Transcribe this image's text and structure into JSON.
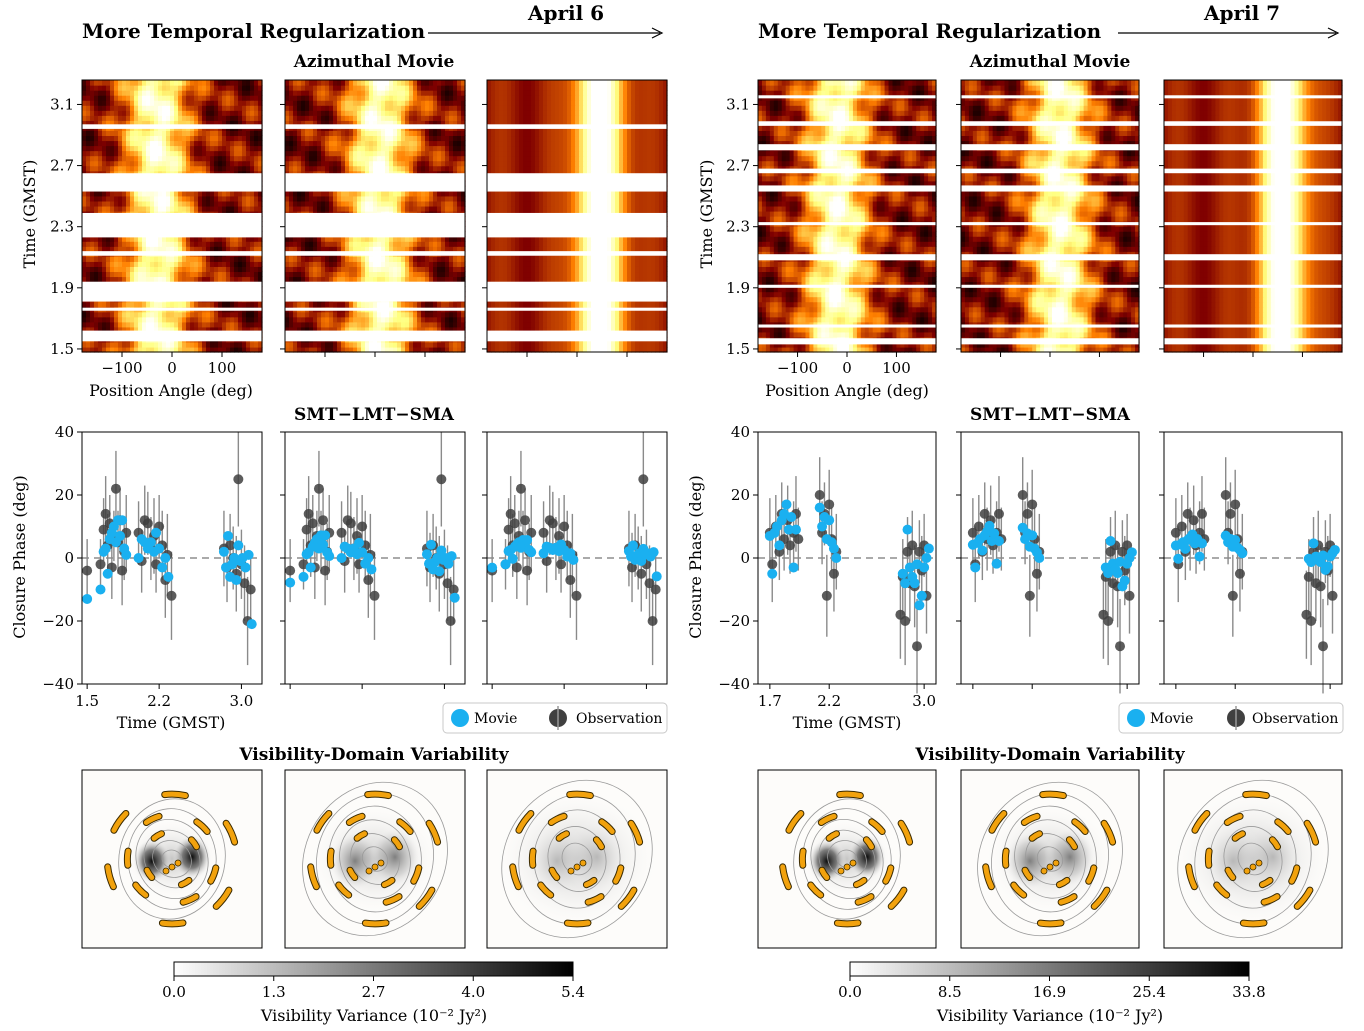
{
  "chart_data": {
    "type": "composite",
    "panels": [
      {
        "day": "April 6",
        "header": "More Temporal Regularization",
        "movie": {
          "title": "Azimuthal Movie",
          "xlabel": "Position Angle (deg)",
          "ylabel": "Time (GMST)",
          "xticks": [
            "−100",
            "0",
            "100"
          ],
          "xtick_values": [
            -100,
            0,
            100
          ],
          "yticks": [
            "1.5",
            "1.9",
            "2.3",
            "2.7",
            "3.1"
          ],
          "ytick_values": [
            1.5,
            1.9,
            2.3,
            2.7,
            3.1
          ],
          "ylim": [
            1.48,
            3.26
          ],
          "gaps": [
            [
              1.55,
              1.62
            ],
            [
              1.75,
              1.77
            ],
            [
              1.81,
              1.94
            ],
            [
              2.11,
              2.14
            ],
            [
              2.23,
              2.39
            ],
            [
              2.53,
              2.65
            ],
            [
              2.94,
              2.97
            ]
          ],
          "bright_center_deg": [
            -30,
            10,
            45
          ]
        },
        "closure": {
          "title": "SMT−LMT−SMA",
          "xlabel": "Time (GMST)",
          "ylabel": "Closure Phase (deg)",
          "xticks": [
            "1.5",
            "2.2",
            "3.0"
          ],
          "xtick_values": [
            1.5,
            2.2,
            3.0
          ],
          "yticks": [
            "−40",
            "−20",
            "0",
            "20",
            "40"
          ],
          "ylim": [
            -40,
            40
          ],
          "xlim": [
            1.45,
            3.2
          ],
          "observation": [
            [
              1.5,
              -4,
              10
            ],
            [
              1.63,
              -2,
              8
            ],
            [
              1.66,
              9,
              10
            ],
            [
              1.68,
              14,
              12
            ],
            [
              1.7,
              4,
              10
            ],
            [
              1.72,
              11,
              9
            ],
            [
              1.74,
              -3,
              10
            ],
            [
              1.76,
              7,
              8
            ],
            [
              1.78,
              22,
              12
            ],
            [
              1.8,
              5,
              10
            ],
            [
              1.82,
              12,
              10
            ],
            [
              1.84,
              -4,
              11
            ],
            [
              1.86,
              2,
              9
            ],
            [
              1.88,
              8,
              12
            ],
            [
              2.0,
              8,
              10
            ],
            [
              2.03,
              -1,
              10
            ],
            [
              2.06,
              12,
              11
            ],
            [
              2.09,
              11,
              10
            ],
            [
              2.12,
              3,
              10
            ],
            [
              2.15,
              7,
              12
            ],
            [
              2.17,
              -2,
              9
            ],
            [
              2.2,
              10,
              10
            ],
            [
              2.23,
              4,
              11
            ],
            [
              2.26,
              -7,
              12
            ],
            [
              2.28,
              1,
              13
            ],
            [
              2.32,
              -12,
              14
            ],
            [
              2.83,
              3,
              12
            ],
            [
              2.86,
              -3,
              11
            ],
            [
              2.89,
              4,
              10
            ],
            [
              2.92,
              0,
              10
            ],
            [
              2.95,
              -5,
              12
            ],
            [
              2.97,
              25,
              15
            ],
            [
              3.0,
              -2,
              11
            ],
            [
              3.03,
              -8,
              12
            ],
            [
              3.06,
              -20,
              14
            ],
            [
              3.09,
              -10,
              11
            ]
          ],
          "movie": [
            [
              1.5,
              -13
            ],
            [
              1.63,
              -10
            ],
            [
              1.66,
              2
            ],
            [
              1.68,
              3
            ],
            [
              1.7,
              -5
            ],
            [
              1.72,
              6
            ],
            [
              1.74,
              8
            ],
            [
              1.76,
              10
            ],
            [
              1.78,
              5
            ],
            [
              1.8,
              12
            ],
            [
              1.82,
              7
            ],
            [
              1.84,
              12
            ],
            [
              1.86,
              3
            ],
            [
              1.88,
              1
            ],
            [
              2.0,
              0
            ],
            [
              2.03,
              6
            ],
            [
              2.06,
              5
            ],
            [
              2.09,
              3
            ],
            [
              2.12,
              5
            ],
            [
              2.15,
              2
            ],
            [
              2.17,
              8
            ],
            [
              2.2,
              3
            ],
            [
              2.23,
              -3
            ],
            [
              2.26,
              0
            ],
            [
              2.29,
              -6
            ],
            [
              2.83,
              2
            ],
            [
              2.85,
              -3
            ],
            [
              2.87,
              7
            ],
            [
              2.89,
              -6
            ],
            [
              2.91,
              -2
            ],
            [
              2.93,
              0
            ],
            [
              2.95,
              -7
            ],
            [
              2.97,
              4
            ],
            [
              2.99,
              -1
            ],
            [
              3.01,
              0
            ],
            [
              3.04,
              -3
            ],
            [
              3.07,
              1
            ],
            [
              3.1,
              -21
            ]
          ]
        },
        "variance": {
          "title": "Visibility-Domain Variability",
          "colorbar_label": "Visibility Variance (10⁻² Jy²)",
          "colorbar_ticks": [
            "0.0",
            "1.3",
            "2.7",
            "4.0",
            "5.4"
          ],
          "colorbar_range": [
            0.0,
            5.4
          ]
        }
      },
      {
        "day": "April 7",
        "header": "More Temporal Regularization",
        "movie": {
          "title": "Azimuthal Movie",
          "xlabel": "Position Angle (deg)",
          "ylabel": "Time (GMST)",
          "xticks": [
            "−100",
            "0",
            "100"
          ],
          "xtick_values": [
            -100,
            0,
            100
          ],
          "yticks": [
            "1.5",
            "1.9",
            "2.3",
            "2.7",
            "3.1"
          ],
          "ytick_values": [
            1.5,
            1.9,
            2.3,
            2.7,
            3.1
          ],
          "ylim": [
            1.48,
            3.26
          ],
          "gaps": [
            [
              1.53,
              1.57
            ],
            [
              1.64,
              1.66
            ],
            [
              1.9,
              1.92
            ],
            [
              2.08,
              2.12
            ],
            [
              2.31,
              2.33
            ],
            [
              2.53,
              2.57
            ],
            [
              2.65,
              2.68
            ],
            [
              2.8,
              2.84
            ],
            [
              2.96,
              2.99
            ],
            [
              3.14,
              3.16
            ]
          ],
          "bright_center_deg": [
            -20,
            20,
            60
          ]
        },
        "closure": {
          "title": "SMT−LMT−SMA",
          "xlabel": "Time (GMST)",
          "ylabel": "Closure Phase (deg)",
          "xticks": [
            "1.7",
            "2.2",
            "3.0"
          ],
          "xtick_values": [
            1.7,
            2.2,
            3.0
          ],
          "yticks": [
            "−40",
            "−20",
            "0",
            "20",
            "40"
          ],
          "ylim": [
            -40,
            40
          ],
          "xlim": [
            1.6,
            3.1
          ],
          "observation": [
            [
              1.7,
              8,
              11
            ],
            [
              1.72,
              -2,
              12
            ],
            [
              1.75,
              10,
              10
            ],
            [
              1.78,
              2,
              9
            ],
            [
              1.8,
              14,
              10
            ],
            [
              1.82,
              6,
              10
            ],
            [
              1.85,
              12,
              11
            ],
            [
              1.87,
              4,
              9
            ],
            [
              1.9,
              8,
              10
            ],
            [
              1.92,
              14,
              12
            ],
            [
              1.94,
              6,
              10
            ],
            [
              2.12,
              20,
              12
            ],
            [
              2.14,
              8,
              10
            ],
            [
              2.16,
              14,
              10
            ],
            [
              2.18,
              -12,
              13
            ],
            [
              2.2,
              17,
              11
            ],
            [
              2.22,
              6,
              10
            ],
            [
              2.24,
              -5,
              12
            ],
            [
              2.26,
              2,
              12
            ],
            [
              2.8,
              -18,
              14
            ],
            [
              2.82,
              -6,
              12
            ],
            [
              2.84,
              -20,
              14
            ],
            [
              2.86,
              2,
              11
            ],
            [
              2.88,
              -8,
              12
            ],
            [
              2.9,
              4,
              11
            ],
            [
              2.92,
              -9,
              13
            ],
            [
              2.94,
              -28,
              15
            ],
            [
              2.96,
              2,
              10
            ],
            [
              2.98,
              -4,
              11
            ],
            [
              3.0,
              4,
              10
            ],
            [
              3.02,
              -12,
              12
            ]
          ],
          "movie": [
            [
              1.7,
              7
            ],
            [
              1.72,
              -5
            ],
            [
              1.74,
              8
            ],
            [
              1.76,
              10
            ],
            [
              1.78,
              4
            ],
            [
              1.8,
              12
            ],
            [
              1.82,
              14
            ],
            [
              1.84,
              17
            ],
            [
              1.86,
              9
            ],
            [
              1.88,
              13
            ],
            [
              1.9,
              -3
            ],
            [
              1.92,
              9
            ],
            [
              2.12,
              16
            ],
            [
              2.14,
              10
            ],
            [
              2.16,
              13
            ],
            [
              2.18,
              6
            ],
            [
              2.2,
              12
            ],
            [
              2.22,
              5
            ],
            [
              2.24,
              3
            ],
            [
              2.26,
              0
            ],
            [
              2.82,
              -5
            ],
            [
              2.84,
              -8
            ],
            [
              2.86,
              9
            ],
            [
              2.88,
              -3
            ],
            [
              2.9,
              -6
            ],
            [
              2.92,
              -8
            ],
            [
              2.94,
              -2
            ],
            [
              2.96,
              -15
            ],
            [
              2.98,
              -12
            ],
            [
              3.0,
              -3
            ],
            [
              3.02,
              0
            ],
            [
              3.04,
              3
            ]
          ]
        },
        "variance": {
          "title": "Visibility-Domain Variability",
          "colorbar_label": "Visibility Variance (10⁻² Jy²)",
          "colorbar_ticks": [
            "0.0",
            "8.5",
            "16.9",
            "25.4",
            "33.8"
          ],
          "colorbar_range": [
            0.0,
            33.8
          ]
        }
      }
    ],
    "legend": {
      "movie": "Movie",
      "observation": "Observation"
    },
    "colors": {
      "movie": "#1ab0f0",
      "observation": "#404040",
      "uv_tracks": "#f2a20d"
    }
  }
}
